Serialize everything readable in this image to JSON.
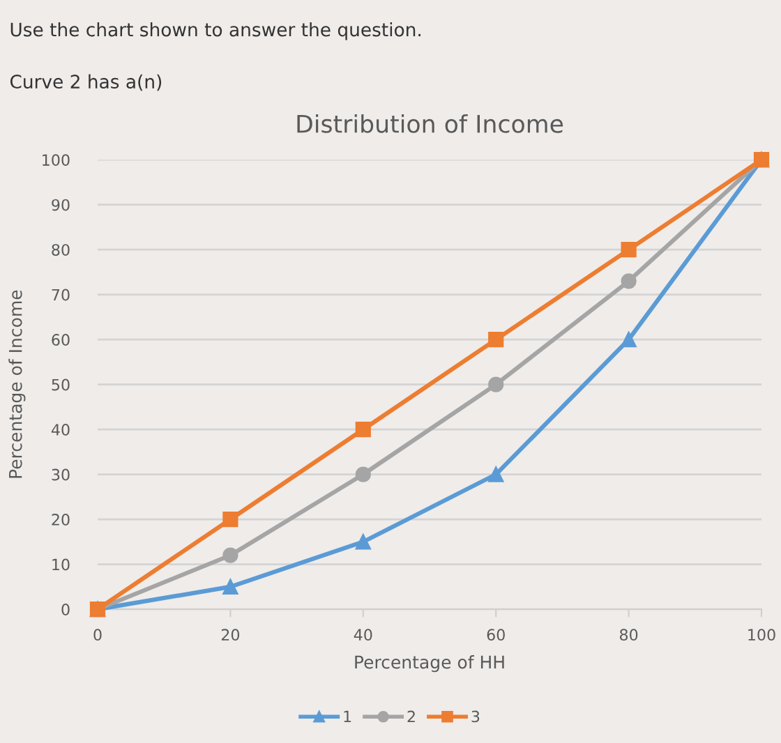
{
  "chart_data": {
    "type": "line",
    "title": "Distribution of Income",
    "xlabel": "Percentage of HH",
    "ylabel": "Percentage of Income",
    "annotations": [
      "Use the chart shown to answer the question.",
      "Curve 2 has a(n)"
    ],
    "x": [
      0,
      20,
      40,
      60,
      80,
      100
    ],
    "series": [
      {
        "name": "1",
        "color": "#5b9bd5",
        "marker": "triangle",
        "values": [
          0,
          5,
          15,
          30,
          60,
          100
        ]
      },
      {
        "name": "2",
        "color": "#a5a5a5",
        "marker": "circle",
        "values": [
          0,
          12,
          30,
          50,
          73,
          100
        ]
      },
      {
        "name": "3",
        "color": "#ed7d31",
        "marker": "square",
        "values": [
          0,
          20,
          40,
          60,
          80,
          100
        ]
      }
    ],
    "xlim": [
      0,
      100
    ],
    "xticks": [
      0,
      20,
      40,
      60,
      80,
      100
    ],
    "ylim": [
      0,
      100
    ],
    "yticks": [
      0,
      10,
      20,
      30,
      40,
      50,
      60,
      70,
      80,
      90,
      100
    ],
    "grid": "y",
    "legend": "bottom",
    "line_style": "solid"
  }
}
